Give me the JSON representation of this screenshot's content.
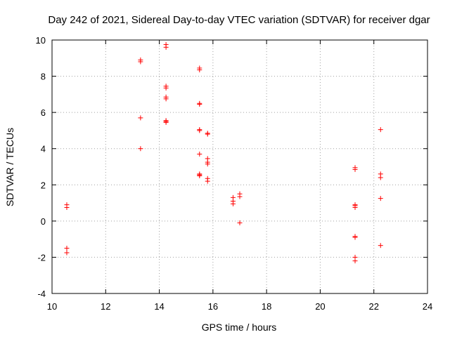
{
  "chart_data": {
    "type": "scatter",
    "title": "Day 242 of 2021, Sidereal Day-to-day VTEC variation (SDTVAR) for receiver dgar",
    "xlabel": "GPS time / hours",
    "ylabel": "SDTVAR / TECUs",
    "xlim": [
      10,
      24
    ],
    "ylim": [
      -4,
      10
    ],
    "xticks": [
      "10",
      "12",
      "14",
      "16",
      "18",
      "20",
      "22",
      "24"
    ],
    "yticks": [
      "-4",
      "-2",
      "0",
      "2",
      "4",
      "6",
      "8",
      "10"
    ],
    "grid": true,
    "marker": "+",
    "color": "#ff0000",
    "series": [
      {
        "name": "dgar",
        "points": [
          [
            10.55,
            0.9
          ],
          [
            10.55,
            0.75
          ],
          [
            10.55,
            -1.5
          ],
          [
            10.55,
            -1.75
          ],
          [
            13.3,
            8.9
          ],
          [
            13.3,
            8.8
          ],
          [
            13.3,
            5.7
          ],
          [
            13.3,
            4.0
          ],
          [
            14.25,
            9.75
          ],
          [
            14.25,
            9.6
          ],
          [
            14.25,
            7.45
          ],
          [
            14.25,
            7.35
          ],
          [
            14.25,
            6.85
          ],
          [
            14.25,
            6.75
          ],
          [
            14.25,
            5.55
          ],
          [
            14.25,
            5.5
          ],
          [
            14.25,
            5.45
          ],
          [
            15.5,
            8.45
          ],
          [
            15.5,
            8.35
          ],
          [
            15.5,
            6.5
          ],
          [
            15.5,
            6.45
          ],
          [
            15.5,
            5.05
          ],
          [
            15.5,
            5.0
          ],
          [
            15.5,
            3.7
          ],
          [
            15.5,
            2.6
          ],
          [
            15.5,
            2.55
          ],
          [
            15.5,
            2.5
          ],
          [
            15.8,
            4.85
          ],
          [
            15.8,
            4.8
          ],
          [
            15.8,
            3.45
          ],
          [
            15.8,
            3.25
          ],
          [
            15.8,
            3.15
          ],
          [
            15.8,
            2.35
          ],
          [
            15.8,
            2.2
          ],
          [
            16.75,
            1.3
          ],
          [
            16.75,
            1.1
          ],
          [
            16.75,
            0.95
          ],
          [
            17.0,
            1.5
          ],
          [
            17.0,
            1.35
          ],
          [
            17.0,
            -0.1
          ],
          [
            21.3,
            2.95
          ],
          [
            21.3,
            2.85
          ],
          [
            21.3,
            0.9
          ],
          [
            21.3,
            0.85
          ],
          [
            21.3,
            0.75
          ],
          [
            21.3,
            -0.85
          ],
          [
            21.3,
            -0.9
          ],
          [
            21.3,
            -2.0
          ],
          [
            21.3,
            -2.2
          ],
          [
            22.25,
            5.05
          ],
          [
            22.25,
            2.6
          ],
          [
            22.25,
            2.4
          ],
          [
            22.25,
            1.25
          ],
          [
            22.25,
            -1.35
          ]
        ]
      }
    ]
  }
}
